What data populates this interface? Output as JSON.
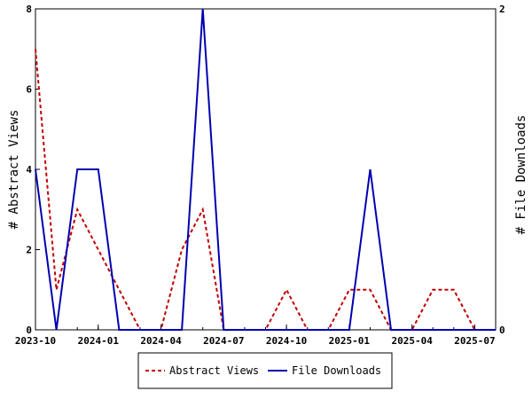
{
  "chart_data": {
    "type": "line",
    "x": [
      "2023-10",
      "2023-11",
      "2023-12",
      "2024-01",
      "2024-02",
      "2024-03",
      "2024-04",
      "2024-05",
      "2024-06",
      "2024-07",
      "2024-08",
      "2024-09",
      "2024-10",
      "2024-11",
      "2024-12",
      "2025-01",
      "2025-02",
      "2025-03",
      "2025-04",
      "2025-05",
      "2025-06",
      "2025-07",
      "2025-08"
    ],
    "x_tick_labels": [
      "2023-10",
      "2024-01",
      "2024-04",
      "2024-07",
      "2024-10",
      "2025-01",
      "2025-04",
      "2025-07"
    ],
    "xlim": [
      "2023-10",
      "2025-08"
    ],
    "ylabel_left": "# Abstract Views",
    "ylabel_right": "# File Downloads",
    "ylim_left": [
      0,
      8
    ],
    "ylim_right": [
      0,
      2
    ],
    "yticks_left": [
      0,
      2,
      4,
      6,
      8
    ],
    "yticks_right": [
      0,
      2
    ],
    "grid": false,
    "legend_position": "bottom",
    "series": [
      {
        "name": "Abstract Views",
        "axis": "left",
        "color": "#c00000",
        "style": "dashed",
        "values": [
          7,
          1,
          3,
          2,
          1,
          0,
          0,
          2,
          3,
          0,
          0,
          0,
          1,
          0,
          0,
          1,
          1,
          0,
          0,
          1,
          1,
          0,
          0
        ]
      },
      {
        "name": "File Downloads",
        "axis": "right",
        "color": "#0000b0",
        "style": "solid",
        "values": [
          1,
          0,
          1,
          1,
          0,
          0,
          0,
          0,
          2,
          0,
          0,
          0,
          0,
          0,
          0,
          0,
          1,
          0,
          0,
          0,
          0,
          0,
          0
        ]
      }
    ]
  }
}
